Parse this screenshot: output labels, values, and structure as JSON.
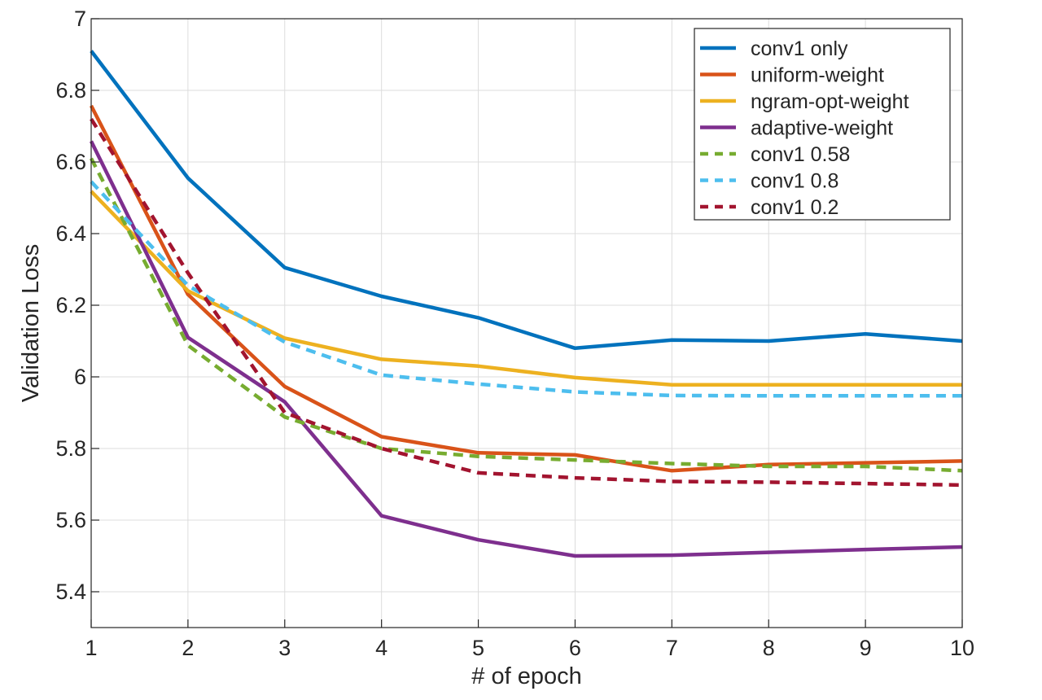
{
  "chart_data": {
    "type": "line",
    "title": "",
    "xlabel": "# of epoch",
    "ylabel": "Validation Loss",
    "xlim": [
      1,
      10
    ],
    "ylim": [
      5.3,
      7.0
    ],
    "grid": true,
    "legend_position": "top-right",
    "x": [
      1,
      2,
      3,
      4,
      5,
      6,
      7,
      8,
      9,
      10
    ],
    "x_ticks": [
      "1",
      "2",
      "3",
      "4",
      "5",
      "6",
      "7",
      "8",
      "9",
      "10"
    ],
    "y_ticks": [
      {
        "value": 5.4,
        "label": "5.4"
      },
      {
        "value": 5.6,
        "label": "5.6"
      },
      {
        "value": 5.8,
        "label": "5.8"
      },
      {
        "value": 6.0,
        "label": "6"
      },
      {
        "value": 6.2,
        "label": "6.2"
      },
      {
        "value": 6.4,
        "label": "6.4"
      },
      {
        "value": 6.6,
        "label": "6.6"
      },
      {
        "value": 6.8,
        "label": "6.8"
      },
      {
        "value": 7.0,
        "label": "7"
      }
    ],
    "series": [
      {
        "name": "conv1 only",
        "color": "#0072BD",
        "dash": "solid",
        "values": [
          6.91,
          6.555,
          6.305,
          6.225,
          6.165,
          6.08,
          6.103,
          6.1,
          6.12,
          6.1
        ]
      },
      {
        "name": "uniform-weight",
        "color": "#D95319",
        "dash": "solid",
        "values": [
          6.757,
          6.23,
          5.973,
          5.833,
          5.788,
          5.782,
          5.738,
          5.755,
          5.76,
          5.765
        ]
      },
      {
        "name": "ngram-opt-weight",
        "color": "#EDB120",
        "dash": "solid",
        "values": [
          6.518,
          6.24,
          6.108,
          6.049,
          6.03,
          5.998,
          5.978,
          5.978,
          5.978,
          5.978
        ]
      },
      {
        "name": "adaptive-weight",
        "color": "#7E2F8E",
        "dash": "solid",
        "values": [
          6.658,
          6.11,
          5.93,
          5.612,
          5.545,
          5.5,
          5.502,
          5.51,
          5.518,
          5.525
        ]
      },
      {
        "name": "conv1 0.58",
        "color": "#77AC30",
        "dash": "dashed",
        "values": [
          6.61,
          6.088,
          5.888,
          5.8,
          5.778,
          5.768,
          5.758,
          5.75,
          5.75,
          5.738
        ]
      },
      {
        "name": "conv1 0.8",
        "color": "#4DBEEE",
        "dash": "dashed",
        "values": [
          6.545,
          6.255,
          6.097,
          6.005,
          5.98,
          5.958,
          5.948,
          5.947,
          5.947,
          5.947
        ]
      },
      {
        "name": "conv1 0.2",
        "color": "#A2142F",
        "dash": "dashed",
        "values": [
          6.72,
          6.29,
          5.9,
          5.8,
          5.732,
          5.718,
          5.708,
          5.706,
          5.702,
          5.698
        ]
      }
    ]
  }
}
